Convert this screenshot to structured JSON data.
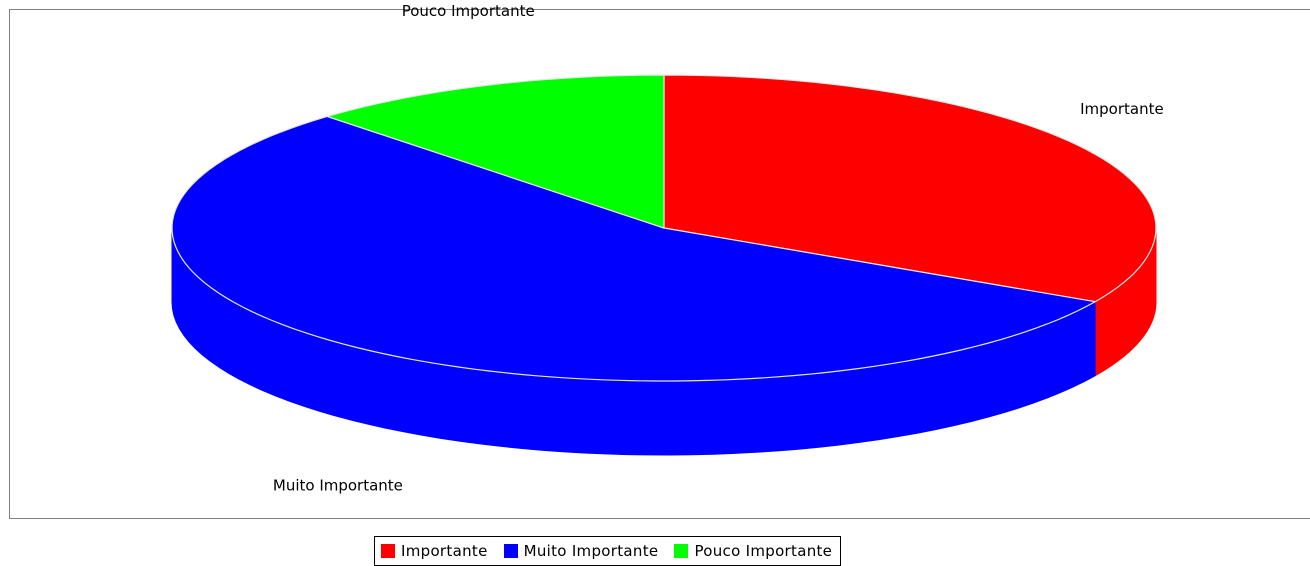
{
  "chart_data": {
    "type": "pie",
    "style": "3d",
    "slices": [
      {
        "label": "Importante",
        "value": 33,
        "color": "#ff0000"
      },
      {
        "label": "Muito Importante",
        "value": 55,
        "color": "#0000ff"
      },
      {
        "label": "Pouco Importante",
        "value": 12,
        "color": "#00ff00"
      }
    ],
    "legend": {
      "placement": "bottom",
      "entries": [
        "Importante",
        "Muito Importante",
        "Pouco Importante"
      ]
    }
  }
}
